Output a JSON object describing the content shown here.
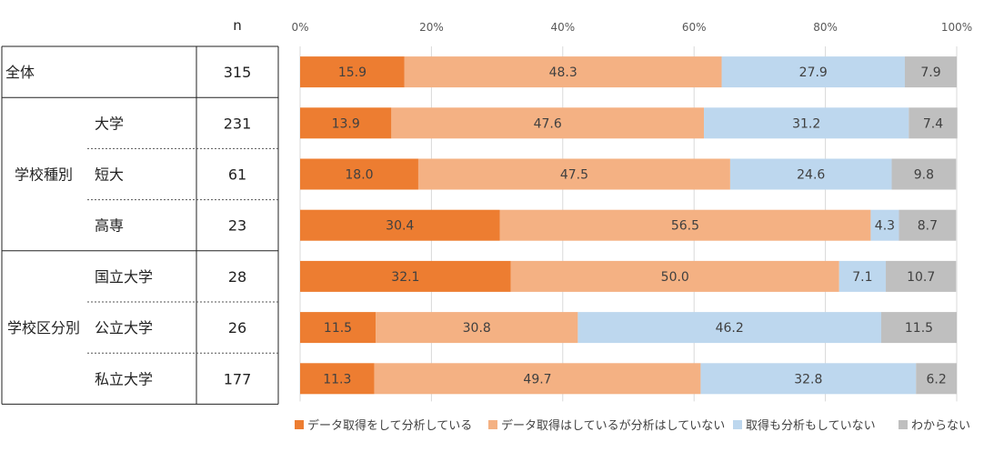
{
  "chart_data": {
    "type": "bar",
    "orientation": "horizontal",
    "stacked": true,
    "n_header": "n",
    "x_ticks": [
      "0%",
      "20%",
      "40%",
      "60%",
      "80%",
      "100%"
    ],
    "xlim": [
      0,
      100
    ],
    "grid": true,
    "legend_position": "bottom",
    "series": [
      {
        "name": "データ取得をして分析している",
        "color": "#ed7d31"
      },
      {
        "name": "データ取得はしているが分析はしていない",
        "color": "#f4b183"
      },
      {
        "name": "取得も分析もしていない",
        "color": "#bdd7ee"
      },
      {
        "name": "わからない",
        "color": "#bfbfbf"
      }
    ],
    "groups": [
      {
        "label": "",
        "rows": [
          {
            "label": "全体",
            "n": "315",
            "values": [
              15.9,
              48.3,
              27.9,
              7.9
            ],
            "labels": [
              "15.9",
              "48.3",
              "27.9",
              "7.9"
            ]
          }
        ]
      },
      {
        "label": "学校種別",
        "rows": [
          {
            "label": "大学",
            "n": "231",
            "values": [
              13.9,
              47.6,
              31.2,
              7.4
            ],
            "labels": [
              "13.9",
              "47.6",
              "31.2",
              "7.4"
            ]
          },
          {
            "label": "短大",
            "n": "61",
            "values": [
              18.0,
              47.5,
              24.6,
              9.8
            ],
            "labels": [
              "18.0",
              "47.5",
              "24.6",
              "9.8"
            ]
          },
          {
            "label": "高専",
            "n": "23",
            "values": [
              30.4,
              56.5,
              4.3,
              8.7
            ],
            "labels": [
              "30.4",
              "56.5",
              "4.3",
              "8.7"
            ]
          }
        ]
      },
      {
        "label": "学校区分別",
        "rows": [
          {
            "label": "国立大学",
            "n": "28",
            "values": [
              32.1,
              50.0,
              7.1,
              10.7
            ],
            "labels": [
              "32.1",
              "50.0",
              "7.1",
              "10.7"
            ]
          },
          {
            "label": "公立大学",
            "n": "26",
            "values": [
              11.5,
              30.8,
              46.2,
              11.5
            ],
            "labels": [
              "11.5",
              "30.8",
              "46.2",
              "11.5"
            ]
          },
          {
            "label": "私立大学",
            "n": "177",
            "values": [
              11.3,
              49.7,
              32.8,
              6.2
            ],
            "labels": [
              "11.3",
              "49.7",
              "32.8",
              "6.2"
            ]
          }
        ]
      }
    ]
  }
}
